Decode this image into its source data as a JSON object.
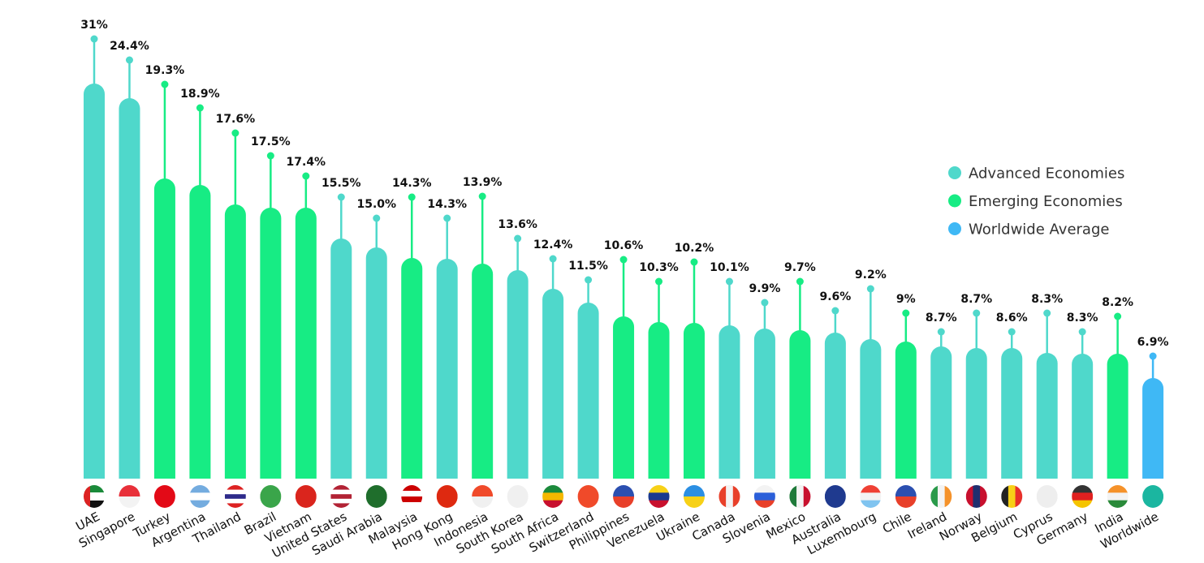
{
  "chart_data": {
    "type": "bar",
    "title": "",
    "xlabel": "",
    "ylabel": "",
    "grid": false,
    "legend_position": "right",
    "value_suffix": "%",
    "categories": [
      "UAE",
      "Singapore",
      "Turkey",
      "Argentina",
      "Thailand",
      "Brazil",
      "Vietnam",
      "United States",
      "Saudi Arabia",
      "Malaysia",
      "Hong Kong",
      "Indonesia",
      "South Korea",
      "South Africa",
      "Switzerland",
      "Philippines",
      "Venezuela",
      "Ukraine",
      "Canada",
      "Slovenia",
      "Mexico",
      "Australia",
      "Luxembourg",
      "Chile",
      "Ireland",
      "Norway",
      "Belgium",
      "Cyprus",
      "Germany",
      "India",
      "Worldwide"
    ],
    "value_labels": [
      "31%",
      "24.4%",
      "19.3%",
      "18.9%",
      "17.6%",
      "17.5%",
      "17.4%",
      "15.5%",
      "15.0%",
      "14.3%",
      "14.3%",
      "13.9%",
      "13.6%",
      "12.4%",
      "11.5%",
      "10.6%",
      "10.3%",
      "10.2%",
      "10.1%",
      "9.9%",
      "9.7%",
      "9.6%",
      "9.2%",
      "9%",
      "8.7%",
      "8.7%",
      "8.6%",
      "8.3%",
      "8.3%",
      "8.2%",
      "6.9%"
    ],
    "values": [
      31,
      24.4,
      19.3,
      18.9,
      17.6,
      17.5,
      17.4,
      15.5,
      15.0,
      14.3,
      14.3,
      13.9,
      13.6,
      12.4,
      11.5,
      10.6,
      10.3,
      10.2,
      10.1,
      9.9,
      9.7,
      9.6,
      9.2,
      9,
      8.7,
      8.7,
      8.6,
      8.3,
      8.3,
      8.2,
      6.9
    ],
    "groups": [
      "advanced",
      "advanced",
      "emerging",
      "emerging",
      "emerging",
      "emerging",
      "emerging",
      "advanced",
      "advanced",
      "emerging",
      "advanced",
      "emerging",
      "advanced",
      "advanced",
      "advanced",
      "emerging",
      "emerging",
      "emerging",
      "advanced",
      "advanced",
      "emerging",
      "advanced",
      "advanced",
      "emerging",
      "advanced",
      "advanced",
      "advanced",
      "advanced",
      "advanced",
      "emerging",
      "worldwide"
    ],
    "legend": [
      {
        "key": "advanced",
        "label": "Advanced Economies",
        "color": "#4fd8cb"
      },
      {
        "key": "emerging",
        "label": "Emerging Economies",
        "color": "#17ec84"
      },
      {
        "key": "worldwide",
        "label": "Worldwide Average",
        "color": "#3fb8f5"
      }
    ],
    "flag_icons": [
      "uae-flag-icon",
      "singapore-flag-icon",
      "turkey-flag-icon",
      "argentina-flag-icon",
      "thailand-flag-icon",
      "brazil-flag-icon",
      "vietnam-flag-icon",
      "usa-flag-icon",
      "saudi-arabia-flag-icon",
      "malaysia-flag-icon",
      "hong-kong-flag-icon",
      "indonesia-flag-icon",
      "south-korea-flag-icon",
      "south-africa-flag-icon",
      "switzerland-flag-icon",
      "philippines-flag-icon",
      "venezuela-flag-icon",
      "ukraine-flag-icon",
      "canada-flag-icon",
      "slovenia-flag-icon",
      "mexico-flag-icon",
      "australia-flag-icon",
      "luxembourg-flag-icon",
      "chile-flag-icon",
      "ireland-flag-icon",
      "norway-flag-icon",
      "belgium-flag-icon",
      "cyprus-flag-icon",
      "germany-flag-icon",
      "india-flag-icon",
      "globe-icon"
    ]
  }
}
